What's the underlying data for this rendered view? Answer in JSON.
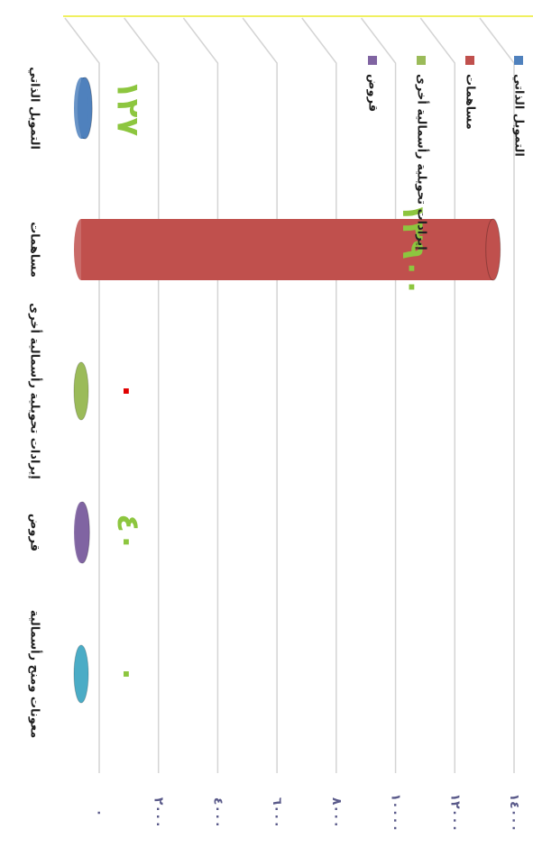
{
  "chart_data": {
    "type": "bar",
    "categories": [
      "التمويل الذاتي",
      "مساهمات",
      "إيرادات تحويلية رأسمالية أخرى",
      "قروض",
      "معونات ومنح رأسمالية"
    ],
    "values": [
      127,
      13900,
      0,
      40,
      0
    ],
    "value_labels": [
      "١٢٧",
      "١٣٩٠٠",
      "٠",
      "٤٠",
      "٠"
    ],
    "colors": [
      "#4f81bd",
      "#c0504d",
      "#9bbb59",
      "#8064a2",
      "#4bacc6"
    ],
    "label_colors": [
      "#8dc63f",
      "#8dc63f",
      "#e00000",
      "#8dc63f",
      "#8dc63f"
    ],
    "xlim": [
      0,
      14000
    ],
    "xticks": [
      {
        "value": 0,
        "label": "٠"
      },
      {
        "value": 2000,
        "label": "٢٠٠٠"
      },
      {
        "value": 4000,
        "label": "٤٠٠٠"
      },
      {
        "value": 6000,
        "label": "٦٠٠٠"
      },
      {
        "value": 8000,
        "label": "٨٠٠٠"
      },
      {
        "value": 10000,
        "label": "١٠٠٠٠"
      },
      {
        "value": 12000,
        "label": "١٢٠٠٠"
      },
      {
        "value": 14000,
        "label": "١٤٠٠٠"
      }
    ],
    "grid": true,
    "legend": "top-right"
  }
}
